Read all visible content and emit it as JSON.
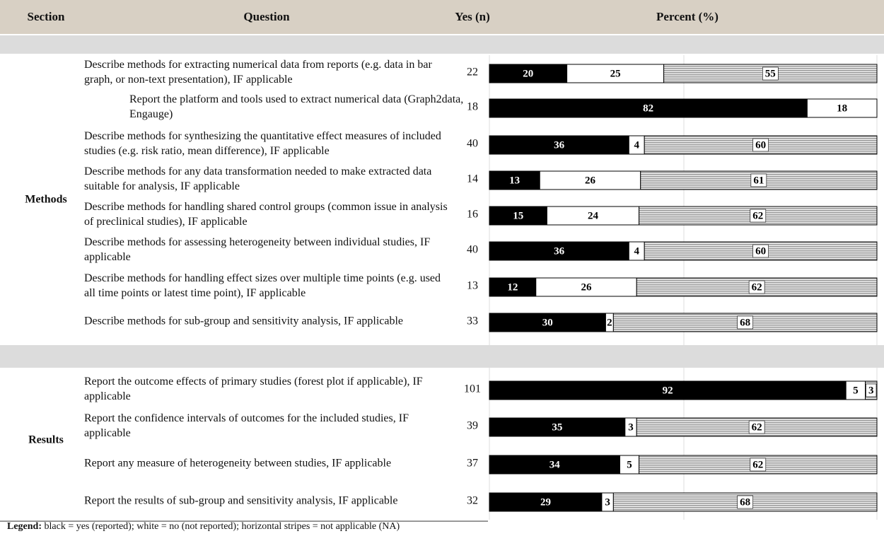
{
  "header": {
    "section": "Section",
    "question": "Question",
    "yes": "Yes (n)",
    "percent": "Percent (%)"
  },
  "groups": [
    {
      "section": "Methods",
      "rows": [
        {
          "question": "Describe methods for extracting numerical data from reports (e.g. data in bar graph, or non-text presentation), IF applicable",
          "yes": 22,
          "segments": [
            20,
            25,
            55
          ]
        },
        {
          "question": "Report the platform and tools used to extract numerical data (Graph2data, Engauge)",
          "yes": 18,
          "segments": [
            82,
            18
          ]
        },
        {
          "question": "Describe methods for synthesizing the quantitative effect measures of included studies (e.g. risk ratio, mean difference), IF applicable",
          "yes": 40,
          "segments": [
            36,
            4,
            60
          ]
        },
        {
          "question": "Describe methods for any data transformation needed to make extracted data suitable for analysis, IF applicable",
          "yes": 14,
          "segments": [
            13,
            26,
            61
          ]
        },
        {
          "question": "Describe methods for handling shared control groups (common issue in analysis of preclinical studies), IF applicable",
          "yes": 16,
          "segments": [
            15,
            24,
            62
          ]
        },
        {
          "question": "Describe methods for assessing heterogeneity between individual studies, IF applicable",
          "yes": 40,
          "segments": [
            36,
            4,
            60
          ]
        },
        {
          "question": "Describe methods for handling effect sizes over multiple time points (e.g. used all time points or latest time point), IF applicable",
          "yes": 13,
          "segments": [
            12,
            26,
            62
          ]
        },
        {
          "question": "Describe methods for sub-group and sensitivity analysis, IF applicable",
          "yes": 33,
          "segments": [
            30,
            2,
            68
          ]
        }
      ]
    },
    {
      "section": "Results",
      "rows": [
        {
          "question": "Report the outcome effects of primary studies (forest plot if applicable), IF applicable",
          "yes": 101,
          "segments": [
            92,
            5,
            3
          ]
        },
        {
          "question": "Report the confidence intervals of outcomes for the included studies, IF applicable",
          "yes": 39,
          "segments": [
            35,
            3,
            62
          ]
        },
        {
          "question": "Report any measure of heterogeneity between studies, IF applicable",
          "yes": 37,
          "segments": [
            34,
            5,
            62
          ]
        },
        {
          "question": "Report the results of sub-group and sensitivity analysis, IF applicable",
          "yes": 32,
          "segments": [
            29,
            3,
            68
          ]
        }
      ]
    }
  ],
  "legend": {
    "label": "Legend:",
    "text": "black = yes (reported); white = no (not reported); horizontal stripes = not applicable (NA)"
  }
}
